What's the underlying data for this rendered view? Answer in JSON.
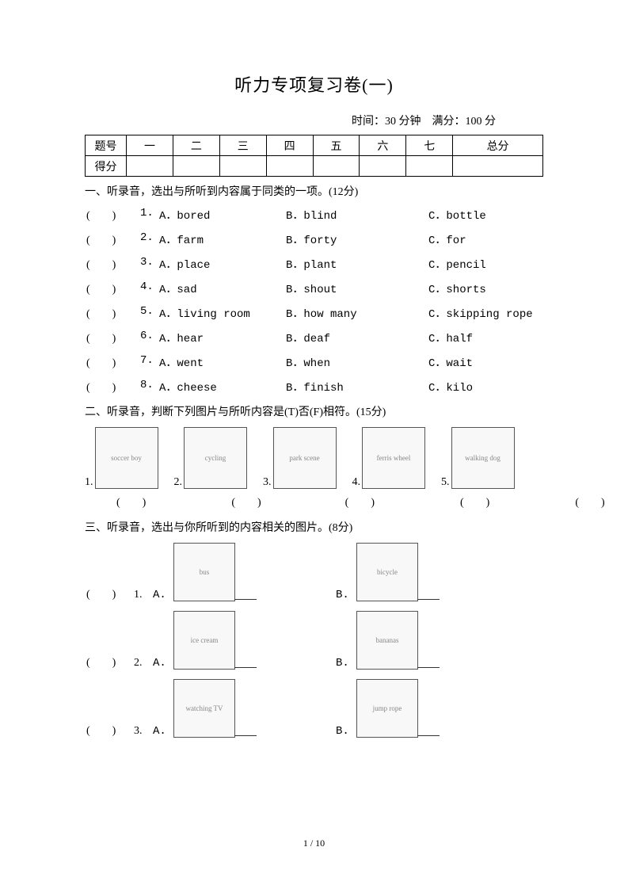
{
  "title": "听力专项复习卷(一)",
  "meta": "时间：30 分钟　满分：100 分",
  "score_table": {
    "row1": [
      "题号",
      "一",
      "二",
      "三",
      "四",
      "五",
      "六",
      "七",
      "总分"
    ],
    "row2_label": "得分"
  },
  "section1": {
    "title": "一、听录音，选出与所听到内容属于同类的一项。(12分)",
    "questions": [
      {
        "n": "1.",
        "a": "A．bored",
        "b": "B．blind",
        "c": "C．bottle"
      },
      {
        "n": "2.",
        "a": "A．farm",
        "b": "B．forty",
        "c": "C．for"
      },
      {
        "n": "3.",
        "a": "A．place",
        "b": "B．plant",
        "c": "C．pencil"
      },
      {
        "n": "4.",
        "a": "A．sad",
        "b": "B．shout",
        "c": "C．shorts"
      },
      {
        "n": "5.",
        "a": "A．living room",
        "b": "B．how many",
        "c": "C．skipping rope"
      },
      {
        "n": "6.",
        "a": "A．hear",
        "b": "B．deaf",
        "c": "C．half"
      },
      {
        "n": "7.",
        "a": "A．went",
        "b": "B．when",
        "c": "C．wait"
      },
      {
        "n": "8.",
        "a": "A．cheese",
        "b": "B．finish",
        "c": "C．kilo"
      }
    ]
  },
  "section2": {
    "title": "二、听录音，判断下列图片与所听内容是(T)否(F)相符。(15分)",
    "items": [
      {
        "n": "1.",
        "img": "soccer boy"
      },
      {
        "n": "2.",
        "img": "cycling"
      },
      {
        "n": "3.",
        "img": "park scene"
      },
      {
        "n": "4.",
        "img": "ferris wheel"
      },
      {
        "n": "5.",
        "img": "walking dog"
      }
    ],
    "paren": "(　　)"
  },
  "section3": {
    "title": "三、听录音，选出与你所听到的内容相关的图片。(8分)",
    "questions": [
      {
        "n": "1.",
        "imga": "bus",
        "imgb": "bicycle"
      },
      {
        "n": "2.",
        "imga": "ice cream",
        "imgb": "bananas"
      },
      {
        "n": "3.",
        "imga": "watching TV",
        "imgb": "jump rope"
      }
    ],
    "a_label": "A.",
    "b_label": "B."
  },
  "paren_input": "(　　)",
  "footer": "1 / 10"
}
